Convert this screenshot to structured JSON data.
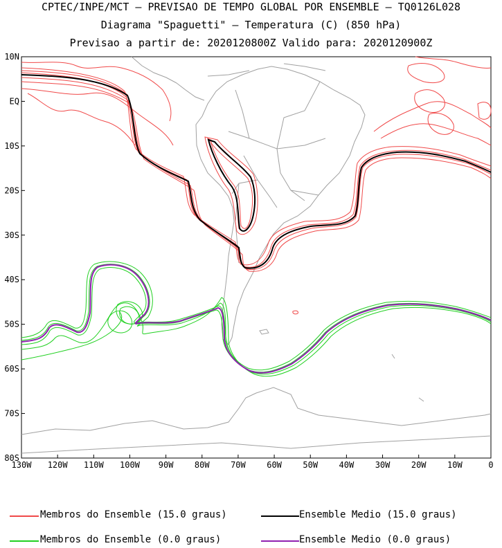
{
  "header": {
    "line1": "CPTEC/INPE/MCT – PREVISAO DE TEMPO GLOBAL POR ENSEMBLE – TQ0126L028",
    "line2": "Diagrama \"Spaguetti\" – Temperatura (C) (850 hPa)",
    "line3": "Previsao a partir de: 2020120800Z  Valido para: 2020120900Z"
  },
  "axes": {
    "lat_labels": [
      "10N",
      "EQ",
      "10S",
      "20S",
      "30S",
      "40S",
      "50S",
      "60S",
      "70S",
      "80S"
    ],
    "lon_labels": [
      "130W",
      "120W",
      "110W",
      "100W",
      "90W",
      "80W",
      "70W",
      "60W",
      "50W",
      "40W",
      "30W",
      "20W",
      "10W",
      "0"
    ],
    "lon_range": [
      -130,
      0
    ],
    "lat_range": [
      -80,
      10
    ]
  },
  "legend": {
    "members_15": "Membros do Ensemble (15.0 graus)",
    "mean_15": "Ensemble Medio (15.0 graus)",
    "members_0": "Membros do Ensemble (0.0 graus)",
    "mean_0": "Ensemble Medio (0.0 graus)"
  },
  "colors": {
    "members_15": "#f04848",
    "mean_15": "#000000",
    "members_0": "#20d020",
    "mean_0": "#9020b0",
    "coast": "#a0a0a0"
  }
}
